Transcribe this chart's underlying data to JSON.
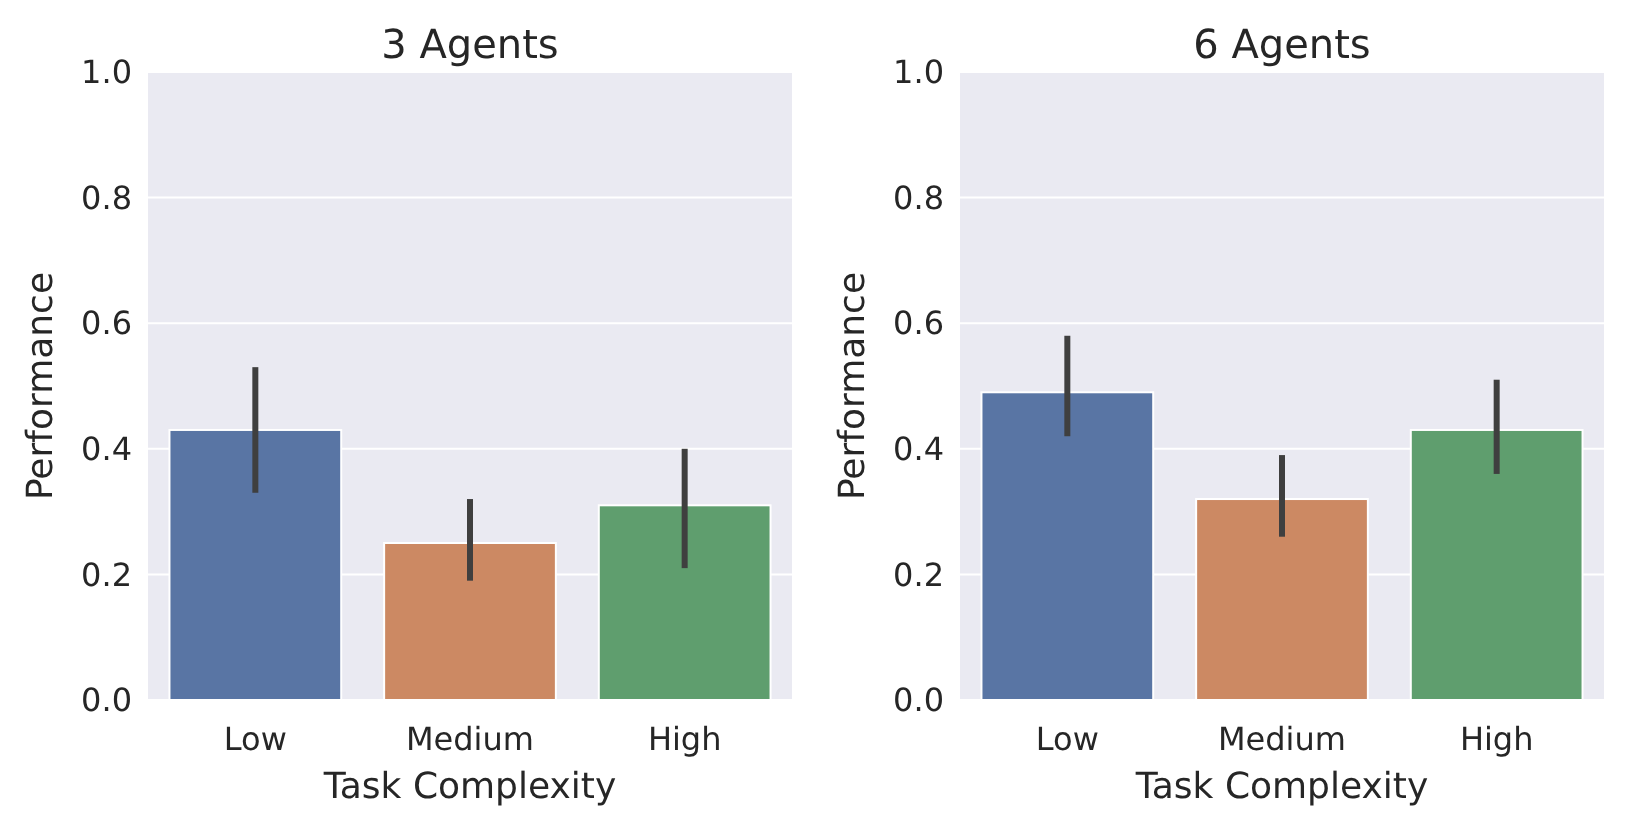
{
  "chart_data": [
    {
      "type": "bar",
      "title": "3 Agents",
      "xlabel": "Task Complexity",
      "ylabel": "Performance",
      "categories": [
        "Low",
        "Medium",
        "High"
      ],
      "values": [
        0.43,
        0.25,
        0.31
      ],
      "colors": [
        "#5975a4",
        "#cc8963",
        "#5f9e6e"
      ],
      "errors": [
        [
          0.33,
          0.53
        ],
        [
          0.19,
          0.32
        ],
        [
          0.21,
          0.4
        ]
      ],
      "ylim": [
        0,
        1
      ],
      "yticks": [
        {
          "value": 0,
          "label": "0.0"
        },
        {
          "value": 0.2,
          "label": "0.2"
        },
        {
          "value": 0.4,
          "label": "0.4"
        },
        {
          "value": 0.6,
          "label": "0.6"
        },
        {
          "value": 0.8,
          "label": "0.8"
        },
        {
          "value": 1,
          "label": "1.0"
        }
      ],
      "grid": "y"
    },
    {
      "type": "bar",
      "title": "6 Agents",
      "xlabel": "Task Complexity",
      "ylabel": "Performance",
      "categories": [
        "Low",
        "Medium",
        "High"
      ],
      "values": [
        0.49,
        0.32,
        0.43
      ],
      "colors": [
        "#5975a4",
        "#cc8963",
        "#5f9e6e"
      ],
      "errors": [
        [
          0.42,
          0.58
        ],
        [
          0.26,
          0.39
        ],
        [
          0.36,
          0.51
        ]
      ],
      "ylim": [
        0,
        1
      ],
      "yticks": [
        {
          "value": 0,
          "label": "0.0"
        },
        {
          "value": 0.2,
          "label": "0.2"
        },
        {
          "value": 0.4,
          "label": "0.4"
        },
        {
          "value": 0.6,
          "label": "0.6"
        },
        {
          "value": 0.8,
          "label": "0.8"
        },
        {
          "value": 1,
          "label": "1.0"
        }
      ],
      "grid": "y"
    }
  ]
}
